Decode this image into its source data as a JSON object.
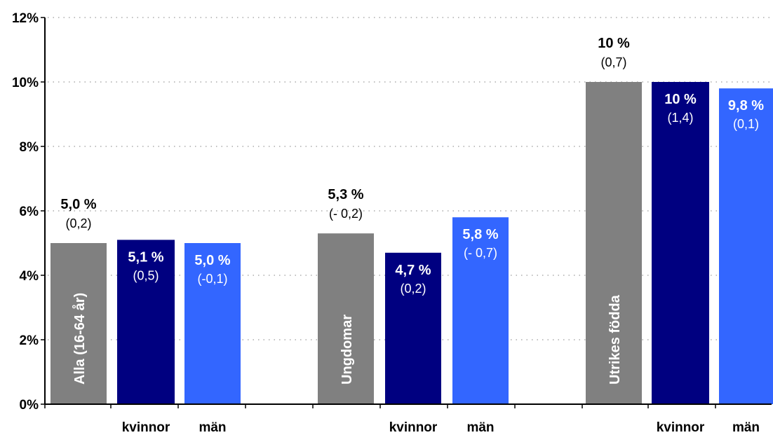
{
  "chart_data": {
    "type": "bar",
    "ylim": [
      0,
      12
    ],
    "y_ticks": [
      "0%",
      "2%",
      "4%",
      "6%",
      "8%",
      "10%",
      "12%"
    ],
    "grid": "dotted horizontal",
    "groups": [
      {
        "name": "Alla (16-64 år)",
        "bars": [
          {
            "label": "Alla (16-64 år)",
            "value": 5.0,
            "value_label": "5,0 %",
            "change_label": "(0,2)",
            "color": "#808080"
          },
          {
            "label": "kvinnor",
            "value": 5.1,
            "value_label": "5,1 %",
            "change_label": "(0,5)",
            "color": "#000080"
          },
          {
            "label": "män",
            "value": 5.0,
            "value_label": "5,0 %",
            "change_label": "(-0,1)",
            "color": "#3366ff"
          }
        ]
      },
      {
        "name": "Ungdomar",
        "bars": [
          {
            "label": "Ungdomar",
            "value": 5.3,
            "value_label": "5,3 %",
            "change_label": "(- 0,2)",
            "color": "#808080"
          },
          {
            "label": "kvinnor",
            "value": 4.7,
            "value_label": "4,7 %",
            "change_label": "(0,2)",
            "color": "#000080"
          },
          {
            "label": "män",
            "value": 5.8,
            "value_label": "5,8 %",
            "change_label": "(- 0,7)",
            "color": "#3366ff"
          }
        ]
      },
      {
        "name": "Utrikes födda",
        "bars": [
          {
            "label": "Utrikes födda",
            "value": 10.0,
            "value_label": "10 %",
            "change_label": "(0,7)",
            "color": "#808080"
          },
          {
            "label": "kvinnor",
            "value": 10.0,
            "value_label": "10 %",
            "change_label": "(1,4)",
            "color": "#000080"
          },
          {
            "label": "män",
            "value": 9.8,
            "value_label": "9,8 %",
            "change_label": "(0,1)",
            "color": "#3366ff"
          }
        ]
      }
    ]
  }
}
